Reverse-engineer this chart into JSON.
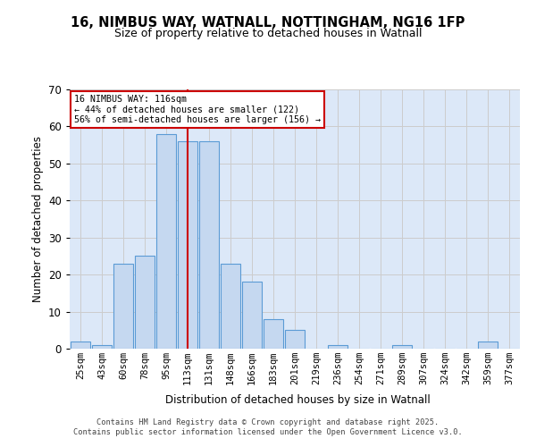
{
  "title_line1": "16, NIMBUS WAY, WATNALL, NOTTINGHAM, NG16 1FP",
  "title_line2": "Size of property relative to detached houses in Watnall",
  "xlabel": "Distribution of detached houses by size in Watnall",
  "ylabel": "Number of detached properties",
  "categories": [
    "25sqm",
    "43sqm",
    "60sqm",
    "78sqm",
    "95sqm",
    "113sqm",
    "131sqm",
    "148sqm",
    "166sqm",
    "183sqm",
    "201sqm",
    "219sqm",
    "236sqm",
    "254sqm",
    "271sqm",
    "289sqm",
    "307sqm",
    "324sqm",
    "342sqm",
    "359sqm",
    "377sqm"
  ],
  "values": [
    2,
    1,
    23,
    25,
    58,
    56,
    56,
    23,
    18,
    8,
    5,
    0,
    1,
    0,
    0,
    1,
    0,
    0,
    0,
    2,
    0
  ],
  "bar_color": "#c5d8f0",
  "bar_edge_color": "#5b9bd5",
  "ref_line_index": 5,
  "ref_line_color": "#cc0000",
  "annotation_text": "16 NIMBUS WAY: 116sqm\n← 44% of detached houses are smaller (122)\n56% of semi-detached houses are larger (156) →",
  "annotation_box_color": "#ffffff",
  "annotation_box_edge": "#cc0000",
  "ylim": [
    0,
    70
  ],
  "yticks": [
    0,
    10,
    20,
    30,
    40,
    50,
    60,
    70
  ],
  "grid_color": "#cccccc",
  "bg_color": "#dce8f8",
  "footer_line1": "Contains HM Land Registry data © Crown copyright and database right 2025.",
  "footer_line2": "Contains public sector information licensed under the Open Government Licence v3.0."
}
